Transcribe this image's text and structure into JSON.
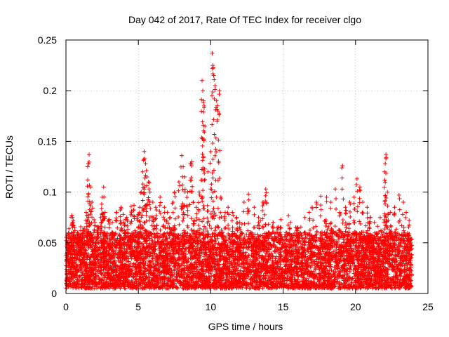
{
  "chart_data": {
    "type": "scatter",
    "title": "Day 042 of 2017, Rate Of TEC Index for receiver clgo",
    "xlabel": "GPS time / hours",
    "ylabel": "ROTI / TECUs",
    "xlim": [
      0,
      25
    ],
    "ylim": [
      0,
      0.25
    ],
    "xticks": [
      0,
      5,
      10,
      15,
      20,
      25
    ],
    "yticks": [
      0,
      0.05,
      0.1,
      0.15,
      0.2,
      0.25
    ],
    "xtick_labels": [
      "0",
      "5",
      "10",
      "15",
      "20",
      "25"
    ],
    "ytick_labels": [
      "0",
      "0.05",
      "0.1",
      "0.15",
      "0.2",
      "0.25"
    ],
    "grid": true,
    "marker": "+",
    "color": "#ff0000",
    "data_range_x": [
      0,
      23.9
    ],
    "baseline_range_y": [
      0.005,
      0.06
    ],
    "series": [
      {
        "name": "ROTI",
        "points": [
          [
            0.1,
            0.045
          ],
          [
            0.2,
            0.03
          ],
          [
            0.3,
            0.055
          ],
          [
            0.4,
            0.077
          ],
          [
            0.5,
            0.072
          ],
          [
            0.6,
            0.065
          ],
          [
            0.8,
            0.06
          ],
          [
            1.0,
            0.055
          ],
          [
            1.2,
            0.062
          ],
          [
            1.4,
            0.08
          ],
          [
            1.5,
            0.125
          ],
          [
            1.55,
            0.128
          ],
          [
            1.6,
            0.137
          ],
          [
            1.7,
            0.105
          ],
          [
            1.8,
            0.09
          ],
          [
            2.0,
            0.07
          ],
          [
            2.2,
            0.066
          ],
          [
            2.4,
            0.075
          ],
          [
            2.5,
            0.095
          ],
          [
            2.6,
            0.105
          ],
          [
            2.7,
            0.08
          ],
          [
            3.0,
            0.073
          ],
          [
            3.2,
            0.07
          ],
          [
            3.5,
            0.08
          ],
          [
            3.8,
            0.085
          ],
          [
            4.0,
            0.07
          ],
          [
            4.2,
            0.075
          ],
          [
            4.5,
            0.086
          ],
          [
            4.7,
            0.087
          ],
          [
            5.0,
            0.078
          ],
          [
            5.1,
            0.085
          ],
          [
            5.2,
            0.1
          ],
          [
            5.3,
            0.12
          ],
          [
            5.4,
            0.14
          ],
          [
            5.5,
            0.128
          ],
          [
            5.6,
            0.115
          ],
          [
            5.7,
            0.11
          ],
          [
            5.8,
            0.1
          ],
          [
            6.0,
            0.09
          ],
          [
            6.2,
            0.085
          ],
          [
            6.5,
            0.095
          ],
          [
            6.8,
            0.085
          ],
          [
            7.0,
            0.08
          ],
          [
            7.2,
            0.075
          ],
          [
            7.4,
            0.09
          ],
          [
            7.5,
            0.1
          ],
          [
            7.8,
            0.11
          ],
          [
            8.0,
            0.136
          ],
          [
            8.1,
            0.125
          ],
          [
            8.2,
            0.115
          ],
          [
            8.4,
            0.1
          ],
          [
            8.6,
            0.128
          ],
          [
            8.7,
            0.13
          ],
          [
            8.8,
            0.09
          ],
          [
            9.0,
            0.085
          ],
          [
            9.2,
            0.1
          ],
          [
            9.4,
            0.21
          ],
          [
            9.45,
            0.2
          ],
          [
            9.5,
            0.19
          ],
          [
            9.55,
            0.185
          ],
          [
            9.6,
            0.165
          ],
          [
            9.8,
            0.12
          ],
          [
            10.0,
            0.14
          ],
          [
            10.1,
            0.237
          ],
          [
            10.15,
            0.225
          ],
          [
            10.2,
            0.215
          ],
          [
            10.3,
            0.205
          ],
          [
            10.4,
            0.19
          ],
          [
            10.5,
            0.18
          ],
          [
            10.6,
            0.2
          ],
          [
            10.7,
            0.095
          ],
          [
            11.0,
            0.08
          ],
          [
            11.2,
            0.085
          ],
          [
            11.5,
            0.08
          ],
          [
            11.8,
            0.075
          ],
          [
            12.0,
            0.07
          ],
          [
            12.3,
            0.09
          ],
          [
            12.6,
            0.098
          ],
          [
            13.0,
            0.085
          ],
          [
            13.3,
            0.075
          ],
          [
            13.6,
            0.09
          ],
          [
            13.8,
            0.103
          ],
          [
            14.0,
            0.06
          ],
          [
            14.3,
            0.07
          ],
          [
            14.8,
            0.065
          ],
          [
            15.2,
            0.06
          ],
          [
            15.5,
            0.07
          ],
          [
            16.0,
            0.065
          ],
          [
            16.5,
            0.075
          ],
          [
            16.8,
            0.08
          ],
          [
            17.0,
            0.085
          ],
          [
            17.3,
            0.09
          ],
          [
            17.6,
            0.096
          ],
          [
            18.0,
            0.095
          ],
          [
            18.3,
            0.09
          ],
          [
            18.6,
            0.103
          ],
          [
            18.9,
            0.08
          ],
          [
            19.1,
            0.126
          ],
          [
            19.3,
            0.085
          ],
          [
            19.6,
            0.09
          ],
          [
            19.9,
            0.095
          ],
          [
            20.1,
            0.113
          ],
          [
            20.3,
            0.105
          ],
          [
            20.5,
            0.09
          ],
          [
            20.8,
            0.085
          ],
          [
            21.0,
            0.075
          ],
          [
            21.3,
            0.07
          ],
          [
            21.7,
            0.075
          ],
          [
            22.0,
            0.12
          ],
          [
            22.05,
            0.128
          ],
          [
            22.1,
            0.137
          ],
          [
            22.2,
            0.1
          ],
          [
            22.4,
            0.08
          ],
          [
            22.7,
            0.085
          ],
          [
            23.0,
            0.097
          ],
          [
            23.3,
            0.09
          ],
          [
            23.5,
            0.08
          ],
          [
            23.7,
            0.072
          ]
        ]
      }
    ]
  }
}
